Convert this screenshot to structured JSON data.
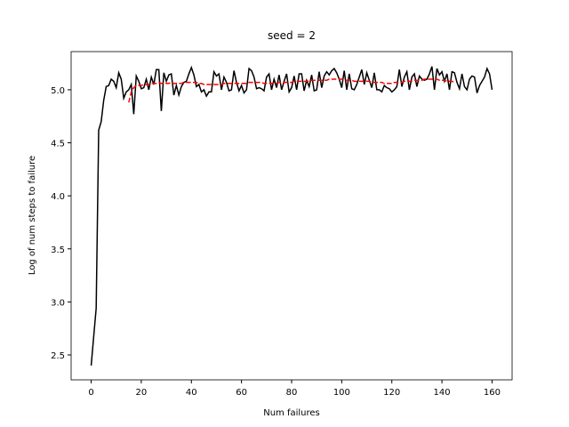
{
  "chart_data": {
    "type": "line",
    "title": "seed = 2",
    "x_label": "Num failures",
    "y_label": "Log of num steps to failure",
    "x": [
      0,
      1,
      2,
      3,
      4,
      5,
      6,
      7,
      8,
      9,
      10,
      11,
      12,
      13,
      14,
      15,
      16,
      17,
      18,
      19,
      20,
      21,
      22,
      23,
      24,
      25,
      26,
      27,
      28,
      29,
      30,
      31,
      32,
      33,
      34,
      35,
      36,
      37,
      38,
      39,
      40,
      41,
      42,
      43,
      44,
      45,
      46,
      47,
      48,
      49,
      50,
      51,
      52,
      53,
      54,
      55,
      56,
      57,
      58,
      59,
      60,
      61,
      62,
      63,
      64,
      65,
      66,
      67,
      68,
      69,
      70,
      71,
      72,
      73,
      74,
      75,
      76,
      77,
      78,
      79,
      80,
      81,
      82,
      83,
      84,
      85,
      86,
      87,
      88,
      89,
      90,
      91,
      92,
      93,
      94,
      95,
      96,
      97,
      98,
      99,
      100,
      101,
      102,
      103,
      104,
      105,
      106,
      107,
      108,
      109,
      110,
      111,
      112,
      113,
      114,
      115,
      116,
      117,
      118,
      119,
      120,
      121,
      122,
      123,
      124,
      125,
      126,
      127,
      128,
      129,
      130,
      131,
      132,
      133,
      134,
      135,
      136,
      137,
      138,
      139,
      140,
      141,
      142,
      143,
      144,
      145,
      146,
      147,
      148,
      149,
      150,
      151,
      152,
      153,
      154,
      155,
      156,
      157,
      158,
      159,
      160
    ],
    "series": [
      {
        "color": "#000000",
        "style": "solid",
        "values": [
          2.4,
          2.67,
          2.94,
          4.62,
          4.7,
          4.9,
          5.03,
          5.04,
          5.1,
          5.08,
          5.02,
          5.16,
          5.1,
          4.92,
          4.98,
          5.0,
          5.05,
          4.77,
          5.13,
          5.08,
          5.01,
          5.02,
          5.1,
          5.0,
          5.12,
          5.05,
          5.19,
          5.19,
          4.8,
          5.16,
          5.08,
          5.14,
          5.15,
          4.95,
          5.04,
          4.95,
          5.03,
          5.07,
          5.08,
          5.15,
          5.21,
          5.14,
          5.03,
          5.05,
          4.98,
          5.0,
          4.94,
          4.98,
          4.98,
          5.17,
          5.13,
          5.15,
          5.0,
          5.12,
          5.07,
          4.99,
          5.0,
          5.18,
          5.07,
          4.99,
          5.04,
          4.97,
          5.0,
          5.2,
          5.18,
          5.12,
          5.01,
          5.02,
          5.01,
          4.99,
          5.12,
          5.15,
          5.0,
          5.1,
          5.02,
          5.14,
          5.0,
          5.08,
          5.15,
          4.98,
          5.02,
          5.13,
          5.0,
          5.15,
          5.15,
          4.99,
          5.09,
          5.03,
          5.14,
          4.99,
          5.0,
          5.17,
          5.02,
          5.13,
          5.17,
          5.14,
          5.18,
          5.2,
          5.16,
          5.1,
          5.02,
          5.18,
          5.0,
          5.15,
          5.01,
          5.0,
          5.05,
          5.12,
          5.19,
          5.05,
          5.16,
          5.09,
          5.02,
          5.16,
          5.0,
          5.0,
          4.98,
          5.04,
          5.02,
          5.01,
          4.98,
          5.0,
          5.03,
          5.19,
          5.03,
          5.12,
          5.17,
          5.0,
          5.12,
          5.15,
          5.03,
          5.13,
          5.1,
          5.09,
          5.1,
          5.15,
          5.22,
          5.0,
          5.2,
          5.14,
          5.17,
          5.08,
          5.15,
          5.0,
          5.17,
          5.16,
          5.07,
          5.01,
          5.15,
          5.03,
          5.0,
          5.1,
          5.13,
          5.12,
          4.97,
          5.04,
          5.08,
          5.12,
          5.2,
          5.15,
          5.0
        ]
      },
      {
        "color": "#ff0000",
        "style": "dashed",
        "values": [
          null,
          null,
          null,
          null,
          null,
          null,
          null,
          null,
          null,
          null,
          null,
          null,
          null,
          null,
          null,
          4.88,
          4.98,
          5.02,
          5.04,
          5.04,
          5.04,
          5.05,
          5.05,
          5.05,
          5.06,
          5.06,
          5.06,
          5.07,
          5.06,
          5.06,
          5.06,
          5.06,
          5.07,
          5.06,
          5.06,
          5.06,
          5.06,
          5.07,
          5.07,
          5.07,
          5.07,
          5.07,
          5.07,
          5.06,
          5.06,
          5.05,
          5.05,
          5.05,
          5.05,
          5.05,
          5.05,
          5.05,
          5.05,
          5.06,
          5.06,
          5.06,
          5.06,
          5.06,
          5.06,
          5.06,
          5.06,
          5.06,
          5.06,
          5.07,
          5.07,
          5.07,
          5.07,
          5.07,
          5.07,
          5.06,
          5.06,
          5.06,
          5.06,
          5.06,
          5.06,
          5.07,
          5.07,
          5.07,
          5.07,
          5.07,
          5.07,
          5.08,
          5.08,
          5.08,
          5.08,
          5.08,
          5.08,
          5.08,
          5.09,
          5.09,
          5.09,
          5.09,
          5.09,
          5.09,
          5.09,
          5.1,
          5.1,
          5.1,
          5.1,
          5.1,
          5.1,
          5.09,
          5.09,
          5.09,
          5.09,
          5.08,
          5.08,
          5.08,
          5.08,
          5.08,
          5.08,
          5.08,
          5.07,
          5.07,
          5.07,
          5.07,
          5.07,
          5.06,
          5.06,
          5.06,
          5.06,
          5.07,
          5.07,
          5.07,
          5.07,
          5.08,
          5.08,
          5.08,
          5.08,
          5.09,
          5.09,
          5.09,
          5.09,
          5.1,
          5.1,
          5.1,
          5.1,
          5.1,
          5.1,
          5.09,
          5.09,
          5.09,
          5.08,
          5.08,
          5.08,
          5.07,
          null,
          null,
          null,
          null,
          null,
          null,
          null,
          null,
          null,
          null,
          null,
          null,
          null,
          null,
          null
        ]
      }
    ],
    "xlim": [
      -8,
      168
    ],
    "ylim": [
      2.265,
      5.36
    ],
    "xticks": [
      0,
      20,
      40,
      60,
      80,
      100,
      120,
      140,
      160
    ],
    "yticks": [
      2.5,
      {
        "value": 3,
        "label": "3.0"
      },
      3.5,
      {
        "value": 4,
        "label": "4.0"
      },
      4.5,
      {
        "value": 5,
        "label": "5.0"
      }
    ]
  }
}
